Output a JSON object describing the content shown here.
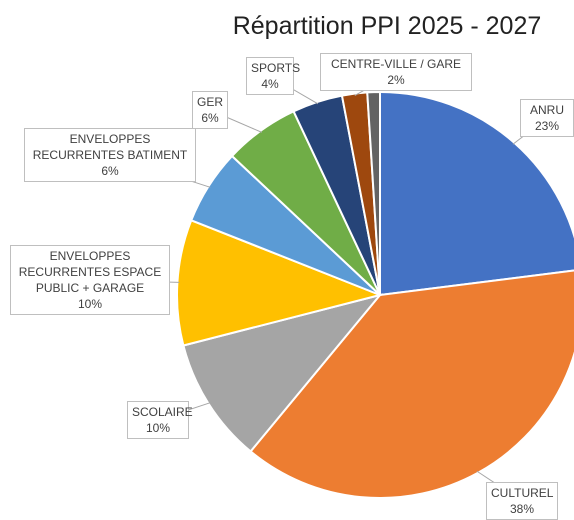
{
  "chart_data": {
    "type": "pie",
    "title": "Répartition PPI 2025 - 2027",
    "categories": [
      "ANRU",
      "CULTUREL",
      "SCOLAIRE",
      "ENVELOPPES RECURRENTES ESPACE PUBLIC + GARAGE",
      "ENVELOPPES RECURRENTES BATIMENT",
      "GER",
      "SPORTS",
      "CENTRE-VILLE / GARE",
      null
    ],
    "values": [
      23,
      38,
      10,
      10,
      6,
      6,
      4,
      2,
      1
    ],
    "value_labels": [
      "23%",
      "38%",
      "10%",
      "10%",
      "6%",
      "6%",
      "4%",
      "2%",
      null
    ],
    "colors": [
      "#4472c4",
      "#ed7d31",
      "#a5a5a5",
      "#ffc000",
      "#5b9bd5",
      "#70ad47",
      "#264478",
      "#9e480e",
      "#636363"
    ]
  }
}
